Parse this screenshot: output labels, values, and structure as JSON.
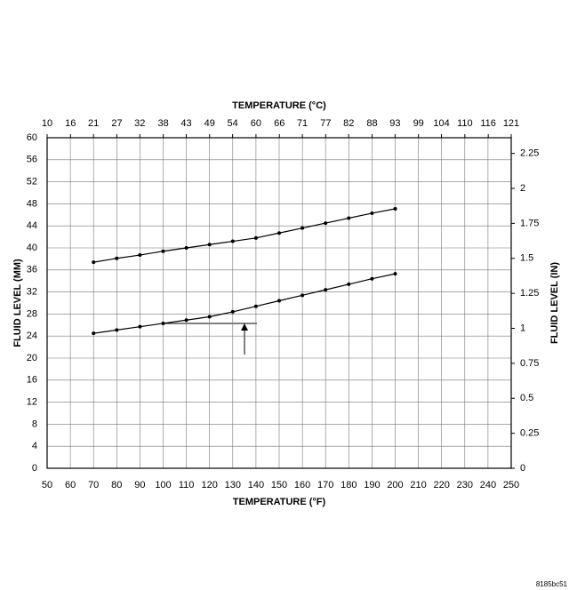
{
  "chart_data": {
    "type": "line",
    "x_label": "TEMPERATURE (°F)",
    "x2_label": "TEMPERATURE (°C)",
    "y_label": "FLUID LEVEL (MM)",
    "y2_label": "FLUID LEVEL (IN)",
    "x": [
      70,
      80,
      90,
      100,
      110,
      120,
      130,
      140,
      150,
      160,
      170,
      180,
      190,
      200
    ],
    "series": [
      {
        "color": "#000000",
        "values": [
          37.4,
          38.1,
          38.7,
          39.4,
          40.0,
          40.6,
          41.2,
          41.8,
          42.7,
          43.6,
          44.5,
          45.4,
          46.3,
          47.1
        ]
      },
      {
        "color": "#000000",
        "values": [
          24.5,
          25.1,
          25.7,
          26.3,
          26.9,
          27.5,
          28.4,
          29.4,
          30.4,
          31.4,
          32.4,
          33.4,
          34.4,
          35.3
        ]
      }
    ],
    "xlim": [
      50,
      250
    ],
    "xticks": [
      50,
      60,
      70,
      80,
      90,
      100,
      110,
      120,
      130,
      140,
      150,
      160,
      170,
      180,
      190,
      200,
      210,
      220,
      230,
      240,
      250
    ],
    "x2lim": [
      10,
      121.1
    ],
    "x2ticks": [
      10,
      {
        "value": 15.6,
        "label": "16"
      },
      {
        "value": 21.1,
        "label": "21"
      },
      {
        "value": 26.7,
        "label": "27"
      },
      {
        "value": 32.2,
        "label": "32"
      },
      {
        "value": 37.8,
        "label": "38"
      },
      {
        "value": 43.3,
        "label": "43"
      },
      {
        "value": 48.9,
        "label": "49"
      },
      {
        "value": 54.4,
        "label": "54"
      },
      60,
      {
        "value": 65.6,
        "label": "66"
      },
      {
        "value": 71.1,
        "label": "71"
      },
      {
        "value": 76.7,
        "label": "77"
      },
      {
        "value": 82.2,
        "label": "82"
      },
      {
        "value": 87.8,
        "label": "88"
      },
      {
        "value": 93.3,
        "label": "93"
      },
      {
        "value": 98.9,
        "label": "99"
      },
      {
        "value": 104.4,
        "label": "104"
      },
      110,
      {
        "value": 115.6,
        "label": "116"
      },
      {
        "value": 121.1,
        "label": "121"
      }
    ],
    "ylim": [
      0,
      60
    ],
    "yticks": [
      0,
      4,
      8,
      12,
      16,
      20,
      24,
      28,
      32,
      36,
      40,
      44,
      48,
      52,
      56,
      60
    ],
    "y2lim": [
      0,
      2.362
    ],
    "y2ticks": [
      0,
      0.25,
      0.5,
      0.75,
      1,
      1.25,
      1.5,
      1.75,
      2,
      2.25
    ],
    "grid": true
  },
  "figure_id": "8185bc51"
}
